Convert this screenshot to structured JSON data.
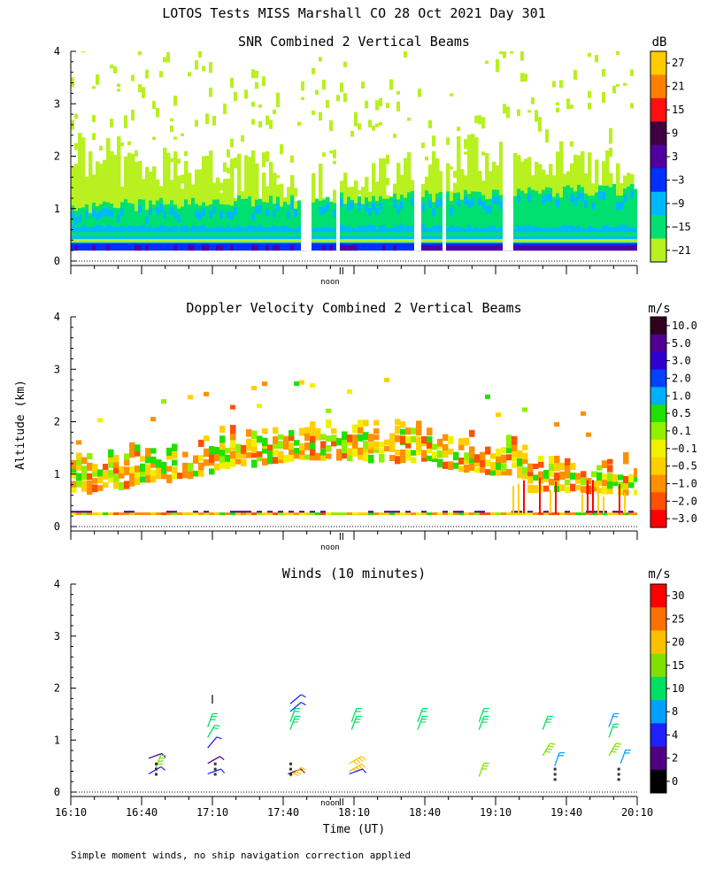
{
  "figure": {
    "title": "LOTOS Tests MISS Marshall CO  28 Oct 2021 Day 301",
    "ylabel": "Altitude (km)",
    "xlabel": "Time (UT)",
    "noon_label": "noon",
    "footer": "Simple moment winds, no ship navigation correction applied"
  },
  "chart_data": [
    {
      "type": "heatmap",
      "title": "SNR Combined 2 Vertical Beams",
      "units": "dB",
      "yticks": [
        "0",
        "1",
        "2",
        "3",
        "4"
      ],
      "ylim": [
        0,
        4
      ],
      "colorbar": {
        "labels": [
          "27",
          "21",
          "15",
          "9",
          "3",
          "−3",
          "−9",
          "−15",
          "−21"
        ],
        "colors": [
          "#ffcc00",
          "#ff8000",
          "#ff1010",
          "#400040",
          "#5000a0",
          "#0030ff",
          "#00b8ff",
          "#00e070",
          "#b8f020"
        ]
      },
      "layers": [
        {
          "alt_range": [
            0.2,
            0.35
          ],
          "snr_db": 0,
          "desc": "blue/purple band"
        },
        {
          "alt_range": [
            0.35,
            0.6
          ],
          "snr_db": -9
        },
        {
          "alt_range": [
            0.6,
            1.0
          ],
          "snr_db": -15
        },
        {
          "alt_range": [
            1.0,
            2.2
          ],
          "snr_db": -21
        }
      ]
    },
    {
      "type": "heatmap",
      "title": "Doppler Velocity Combined 2 Vertical Beams",
      "units": "m/s",
      "yticks": [
        "0",
        "1",
        "2",
        "3",
        "4"
      ],
      "ylim": [
        0,
        4
      ],
      "colorbar": {
        "labels": [
          "10.0",
          "5.0",
          "3.0",
          "2.0",
          "1.0",
          "0.5",
          "0.1",
          "−0.1",
          "−0.5",
          "−1.0",
          "−2.0",
          "−3.0"
        ],
        "colors": [
          "#300020",
          "#500090",
          "#3000d0",
          "#0040ff",
          "#00b0ff",
          "#20e000",
          "#90f000",
          "#f0f000",
          "#ffd000",
          "#ff9000",
          "#ff5000",
          "#ff0000"
        ]
      }
    },
    {
      "type": "scatter",
      "title": "Winds (10 minutes)",
      "units": "m/s",
      "yticks": [
        "0",
        "1",
        "2",
        "3",
        "4"
      ],
      "ylim": [
        0,
        4
      ],
      "xticks": [
        "16:10",
        "16:40",
        "17:10",
        "17:40",
        "18:10",
        "18:40",
        "19:10",
        "19:40",
        "20:10"
      ],
      "xlim_minutes": [
        970,
        1210
      ],
      "colorbar": {
        "labels": [
          "30",
          "25",
          "20",
          "15",
          "10",
          "8",
          "4",
          "2",
          "0"
        ],
        "colors": [
          "#ff0000",
          "#ff7000",
          "#ffc000",
          "#80e000",
          "#00e060",
          "#00a0ff",
          "#2020ff",
          "#500080",
          "#000000"
        ]
      },
      "barbs": [
        {
          "t": 1003,
          "alt": 0.35,
          "speed": 4,
          "dir": 240
        },
        {
          "t": 1003,
          "alt": 0.65,
          "speed": 3,
          "dir": 250
        },
        {
          "t": 1006,
          "alt": 0.45,
          "speed": 18,
          "dir": 200
        },
        {
          "t": 1028,
          "alt": 0.35,
          "speed": 4,
          "dir": 250
        },
        {
          "t": 1028,
          "alt": 0.55,
          "speed": 3,
          "dir": 240
        },
        {
          "t": 1028,
          "alt": 0.85,
          "speed": 4,
          "dir": 220
        },
        {
          "t": 1028,
          "alt": 1.05,
          "speed": 12,
          "dir": 210
        },
        {
          "t": 1028,
          "alt": 1.25,
          "speed": 14,
          "dir": 200
        },
        {
          "t": 1030,
          "alt": 1.7,
          "speed": 0,
          "dir": 180
        },
        {
          "t": 1062,
          "alt": 0.35,
          "speed": 3,
          "dir": 250
        },
        {
          "t": 1063,
          "alt": 0.3,
          "speed": 22,
          "dir": 230
        },
        {
          "t": 1063,
          "alt": 1.2,
          "speed": 14,
          "dir": 200
        },
        {
          "t": 1063,
          "alt": 1.35,
          "speed": 12,
          "dir": 200
        },
        {
          "t": 1063,
          "alt": 1.55,
          "speed": 4,
          "dir": 230
        },
        {
          "t": 1063,
          "alt": 1.7,
          "speed": 4,
          "dir": 230
        },
        {
          "t": 1088,
          "alt": 0.4,
          "speed": 23,
          "dir": 240
        },
        {
          "t": 1088,
          "alt": 0.55,
          "speed": 22,
          "dir": 240
        },
        {
          "t": 1088,
          "alt": 0.35,
          "speed": 5,
          "dir": 250
        },
        {
          "t": 1089,
          "alt": 1.2,
          "speed": 14,
          "dir": 200
        },
        {
          "t": 1089,
          "alt": 1.35,
          "speed": 12,
          "dir": 200
        },
        {
          "t": 1117,
          "alt": 1.2,
          "speed": 14,
          "dir": 200
        },
        {
          "t": 1117,
          "alt": 1.35,
          "speed": 12,
          "dir": 200
        },
        {
          "t": 1143,
          "alt": 1.2,
          "speed": 14,
          "dir": 200
        },
        {
          "t": 1143,
          "alt": 1.35,
          "speed": 12,
          "dir": 200
        },
        {
          "t": 1143,
          "alt": 0.3,
          "speed": 17,
          "dir": 200
        },
        {
          "t": 1170,
          "alt": 1.2,
          "speed": 14,
          "dir": 200
        },
        {
          "t": 1170,
          "alt": 0.7,
          "speed": 18,
          "dir": 210
        },
        {
          "t": 1175,
          "alt": 0.5,
          "speed": 8,
          "dir": 200
        },
        {
          "t": 1198,
          "alt": 1.05,
          "speed": 10,
          "dir": 200
        },
        {
          "t": 1198,
          "alt": 1.25,
          "speed": 9,
          "dir": 200
        },
        {
          "t": 1198,
          "alt": 0.7,
          "speed": 18,
          "dir": 210
        },
        {
          "t": 1203,
          "alt": 0.55,
          "speed": 8,
          "dir": 200
        }
      ]
    }
  ]
}
